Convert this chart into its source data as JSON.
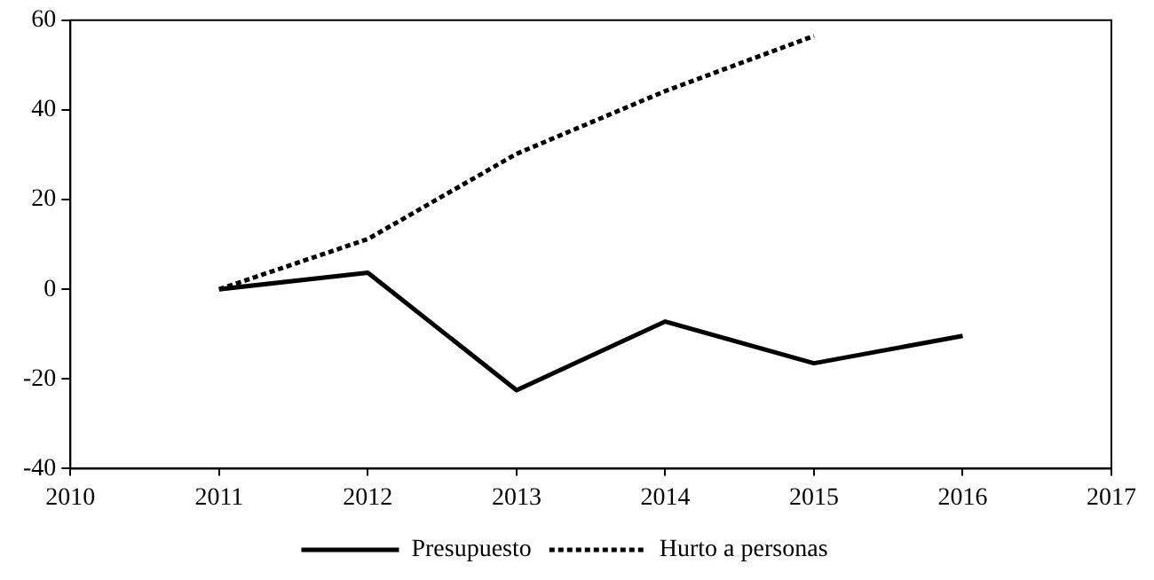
{
  "chart_data": {
    "type": "line",
    "x": [
      2011,
      2012,
      2013,
      2014,
      2015,
      2016
    ],
    "xlim": [
      2010,
      2017
    ],
    "xticks": [
      2010,
      2011,
      2012,
      2013,
      2014,
      2015,
      2016,
      2017
    ],
    "ylim": [
      -40,
      60
    ],
    "yticks": [
      -40,
      -20,
      0,
      20,
      40,
      60
    ],
    "grid": false,
    "legend": "bottom",
    "marker": "none",
    "series": [
      {
        "name": "Presupuesto",
        "color": "#000000",
        "line_style": "solid",
        "values": [
          0,
          3.7,
          -22.5,
          -7.2,
          -16.5,
          -10.4
        ]
      },
      {
        "name": "Hurto a personas",
        "color": "#000000",
        "line_style": "dotted",
        "values": [
          0,
          11.2,
          30.2,
          44.2,
          56.5,
          null
        ]
      }
    ]
  }
}
